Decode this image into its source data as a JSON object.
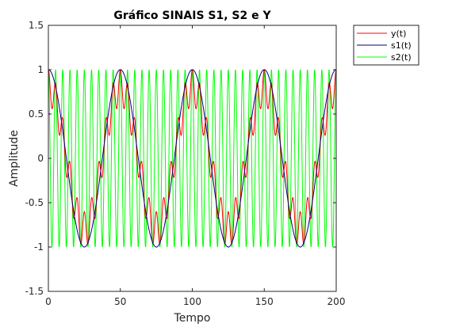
{
  "chart_data": {
    "type": "line",
    "title": "Gráfico SINAIS S1, S2 e Y",
    "xlabel": "Tempo",
    "ylabel": "Amplitude",
    "xlim": [
      0,
      200
    ],
    "ylim": [
      -1.5,
      1.5
    ],
    "xticks": [
      "0",
      "50",
      "100",
      "150",
      "200"
    ],
    "yticks": [
      "-1.5",
      "-1",
      "-0.5",
      "0",
      "0.5",
      "1",
      "1.5"
    ],
    "grid": false,
    "legend_position": "outside-top-right",
    "series": [
      {
        "name": "y(t)",
        "color": "#ff0000",
        "formula": "0.8*cos(2*pi*t/50) + 0.2*cos(2*pi*t/5)",
        "x_range": [
          0,
          200
        ]
      },
      {
        "name": "s1(t)",
        "color": "#00007f",
        "formula": "cos(2*pi*t/50)",
        "x_range": [
          0,
          200
        ]
      },
      {
        "name": "s2(t)",
        "color": "#00ff00",
        "formula": "cos(2*pi*t/5)",
        "x_range": [
          0,
          200
        ]
      }
    ]
  }
}
